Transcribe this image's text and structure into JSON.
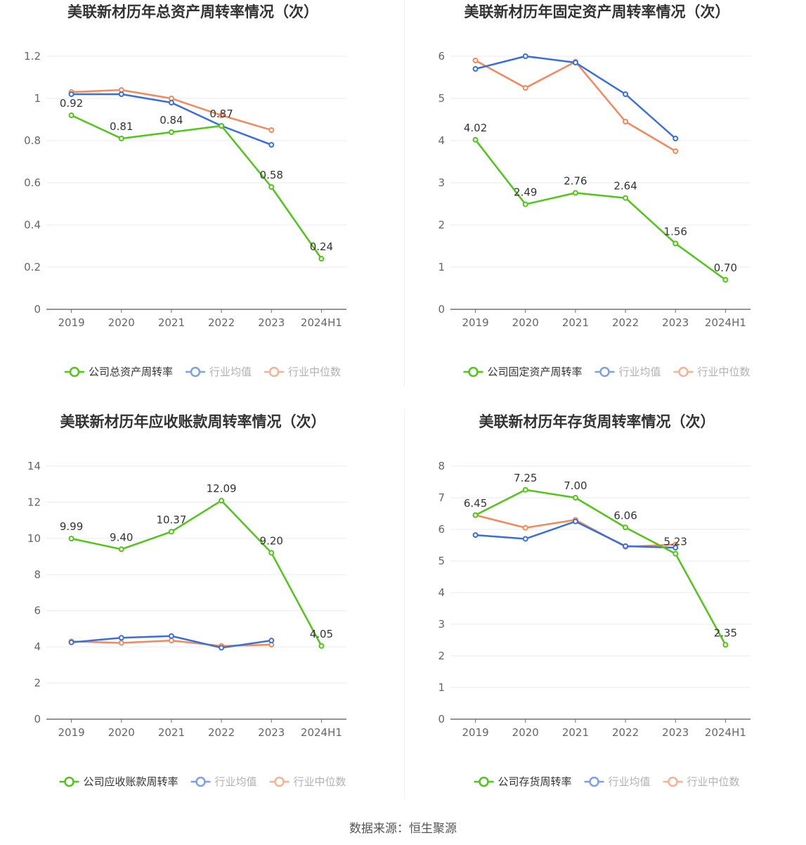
{
  "source": "数据来源：恒生聚源",
  "colors": {
    "company": "#52c41a",
    "avg": "#3a6fd8",
    "median": "#f08a5d"
  },
  "chart_data": [
    {
      "type": "line",
      "title": "美联新材历年总资产周转率情况（次）",
      "categories": [
        "2019",
        "2020",
        "2021",
        "2022",
        "2023",
        "2024H1"
      ],
      "yticks": [
        "0",
        "0.2",
        "0.4",
        "0.6",
        "0.8",
        "1",
        "1.2"
      ],
      "ylim": [
        0,
        1.2
      ],
      "series": [
        {
          "name": "公司总资产周转率",
          "values": [
            0.92,
            0.81,
            0.84,
            0.87,
            0.58,
            0.24
          ],
          "labels": [
            "0.92",
            "0.81",
            "0.84",
            "0.87",
            "0.58",
            "0.24"
          ]
        },
        {
          "name": "行业均值",
          "values": [
            1.02,
            1.02,
            0.98,
            0.87,
            0.78,
            null
          ]
        },
        {
          "name": "行业中位数",
          "values": [
            1.03,
            1.04,
            1.0,
            0.92,
            0.85,
            null
          ]
        }
      ]
    },
    {
      "type": "line",
      "title": "美联新材历年固定资产周转率情况（次）",
      "categories": [
        "2019",
        "2020",
        "2021",
        "2022",
        "2023",
        "2024H1"
      ],
      "yticks": [
        "0",
        "1",
        "2",
        "3",
        "4",
        "5",
        "6"
      ],
      "ylim": [
        0,
        6
      ],
      "series": [
        {
          "name": "公司固定资产周转率",
          "values": [
            4.02,
            2.49,
            2.76,
            2.64,
            1.56,
            0.7
          ],
          "labels": [
            "4.02",
            "2.49",
            "2.76",
            "2.64",
            "1.56",
            "0.70"
          ]
        },
        {
          "name": "行业均值",
          "values": [
            5.7,
            6.0,
            5.85,
            5.1,
            4.05,
            null
          ]
        },
        {
          "name": "行业中位数",
          "values": [
            5.9,
            5.25,
            5.87,
            4.45,
            3.75,
            null
          ]
        }
      ]
    },
    {
      "type": "line",
      "title": "美联新材历年应收账款周转率情况（次）",
      "categories": [
        "2019",
        "2020",
        "2021",
        "2022",
        "2023",
        "2024H1"
      ],
      "yticks": [
        "0",
        "2",
        "4",
        "6",
        "8",
        "10",
        "12",
        "14"
      ],
      "ylim": [
        0,
        14
      ],
      "series": [
        {
          "name": "公司应收账款周转率",
          "values": [
            9.99,
            9.4,
            10.37,
            12.09,
            9.2,
            4.05
          ],
          "labels": [
            "9.99",
            "9.40",
            "10.37",
            "12.09",
            "9.20",
            "4.05"
          ]
        },
        {
          "name": "行业均值",
          "values": [
            4.25,
            4.5,
            4.6,
            3.95,
            4.35,
            null
          ]
        },
        {
          "name": "行业中位数",
          "values": [
            4.3,
            4.22,
            4.35,
            4.05,
            4.12,
            null
          ]
        }
      ]
    },
    {
      "type": "line",
      "title": "美联新材历年存货周转率情况（次）",
      "categories": [
        "2019",
        "2020",
        "2021",
        "2022",
        "2023",
        "2024H1"
      ],
      "yticks": [
        "0",
        "1",
        "2",
        "3",
        "4",
        "5",
        "6",
        "7",
        "8"
      ],
      "ylim": [
        0,
        8
      ],
      "series": [
        {
          "name": "公司存货周转率",
          "values": [
            6.45,
            7.25,
            7.0,
            6.06,
            5.23,
            2.35
          ],
          "labels": [
            "6.45",
            "7.25",
            "7.00",
            "6.06",
            "5.23",
            "2.35"
          ]
        },
        {
          "name": "行业均值",
          "values": [
            5.82,
            5.7,
            6.25,
            5.47,
            5.42,
            null
          ]
        },
        {
          "name": "行业中位数",
          "values": [
            6.45,
            6.05,
            6.3,
            5.45,
            5.52,
            null
          ]
        }
      ]
    }
  ]
}
